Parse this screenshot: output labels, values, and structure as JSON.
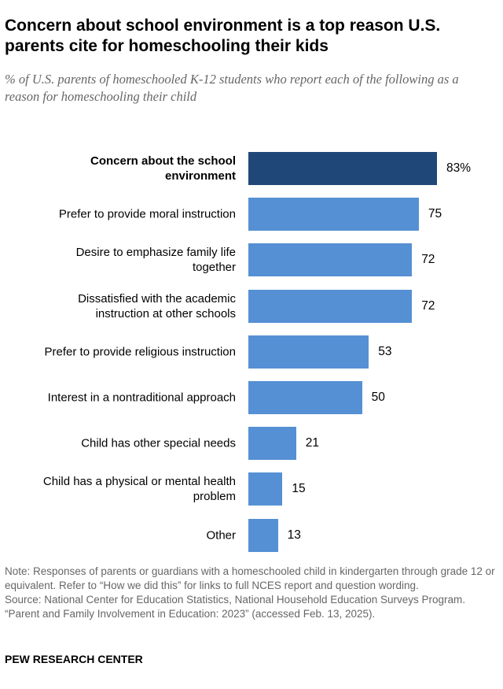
{
  "chart_data": {
    "type": "bar",
    "orientation": "horizontal",
    "title": "Concern about school environment is a top reason U.S. parents cite for homeschooling their kids",
    "subtitle": "% of U.S. parents of homeschooled K-12 students who report each of the following as a reason for homeschooling their child",
    "categories": [
      "Concern about the school environment",
      "Prefer to provide moral instruction",
      "Desire to emphasize family life together",
      "Dissatisfied with the academic instruction at other schools",
      "Prefer to provide religious instruction",
      "Interest in a nontraditional approach",
      "Child has other special needs",
      "Child has a physical or mental health problem",
      "Other"
    ],
    "values": [
      83,
      75,
      72,
      72,
      53,
      50,
      21,
      15,
      13
    ],
    "value_labels": [
      "83%",
      "75",
      "72",
      "72",
      "53",
      "50",
      "21",
      "15",
      "13"
    ],
    "highlight_index": 0,
    "xlim": [
      0,
      100
    ],
    "colors": {
      "highlight": "#1f4878",
      "default": "#5590d4"
    }
  },
  "note": "Note: Responses of parents or guardians with a homeschooled child in kindergarten through grade 12 or equivalent. Refer to “How we did this” for links to full NCES report and question wording.",
  "source": "Source: National Center for Education Statistics, National Household Education Surveys Program. “Parent and Family Involvement in Education: 2023” (accessed Feb. 13, 2025).",
  "brand": "PEW RESEARCH CENTER"
}
